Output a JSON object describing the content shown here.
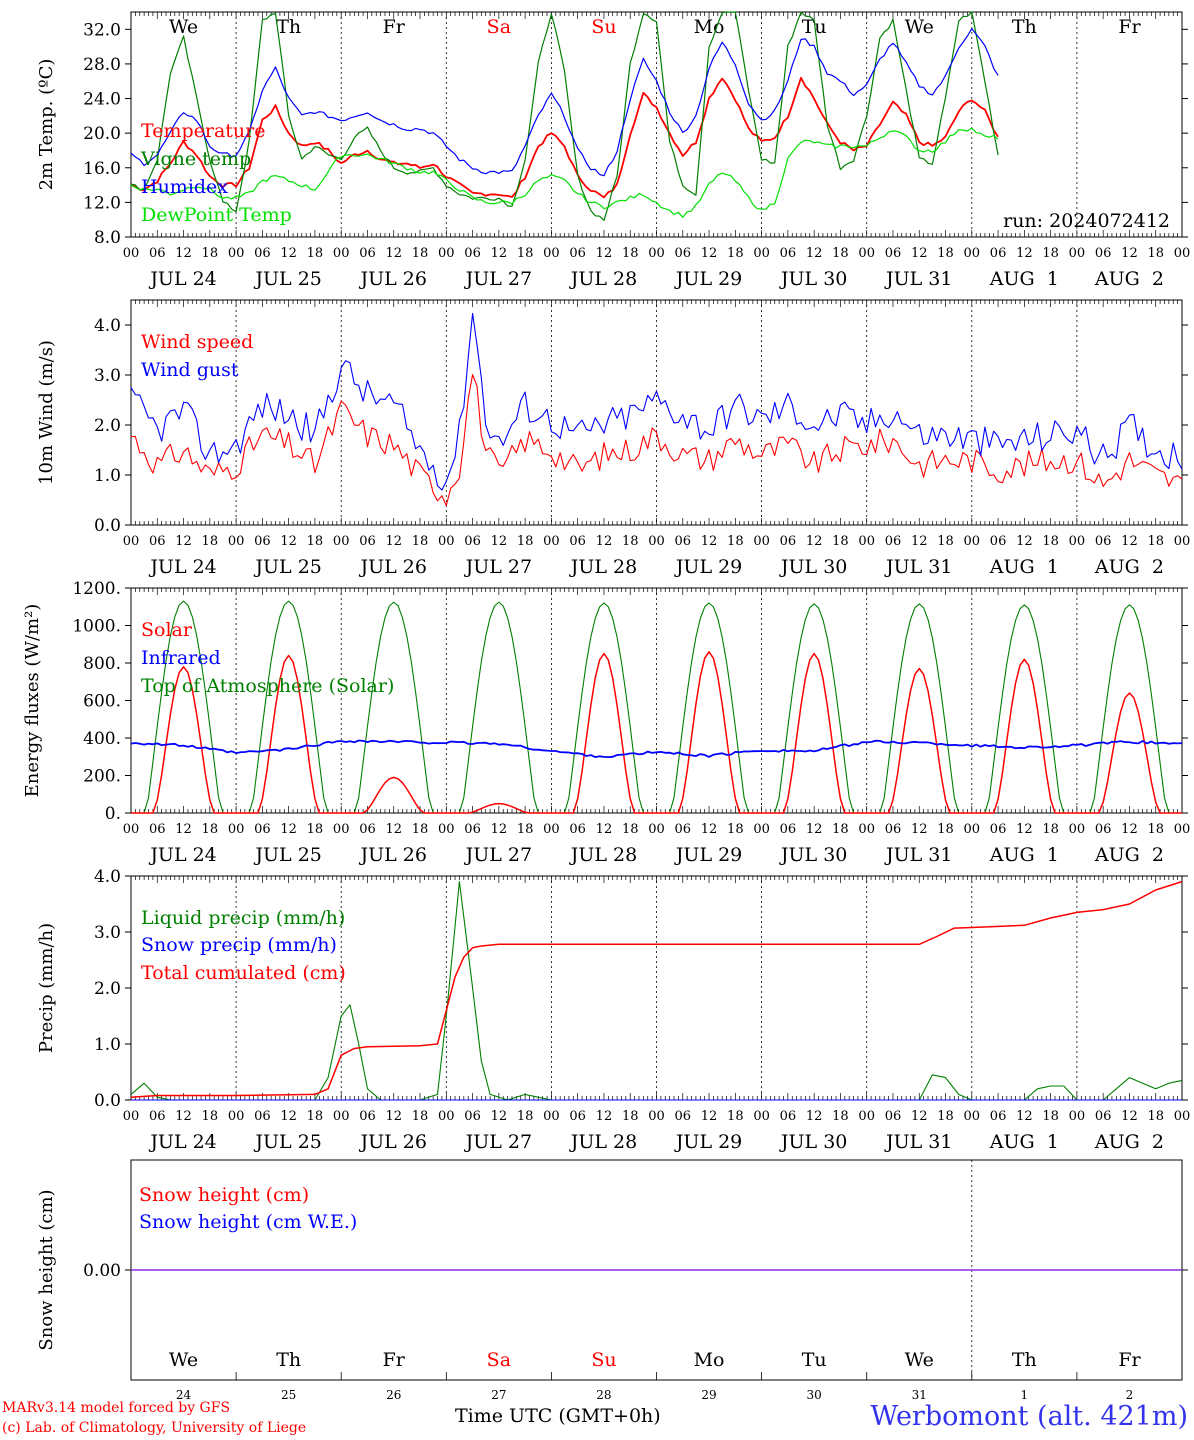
{
  "page": {
    "model_credit": "MARv3.14 model forced by GFS",
    "lab_credit": "(c) Lab. of Climatology, University of Liege",
    "time_axis_label": "Time UTC (GMT+0h)",
    "station": "Werbomont (alt. 421m)"
  },
  "colors": {
    "red": "#ff0000",
    "green": "#008000",
    "blue": "#0000ff",
    "lightgreen": "#00e000",
    "weekend": "#ff0000",
    "purple": "#8a2be2"
  },
  "day_names": [
    "We",
    "Th",
    "Fr",
    "Sa",
    "Su",
    "Mo",
    "Tu",
    "We",
    "Th",
    "Fr"
  ],
  "weekend_days": [
    3,
    4
  ],
  "date_labels": [
    "JUL 24",
    "JUL 25",
    "JUL 26",
    "JUL 27",
    "JUL 28",
    "JUL 29",
    "JUL 30",
    "JUL 31",
    "AUG  1",
    "AUG  2"
  ],
  "day_numbers": [
    "24",
    "25",
    "26",
    "27",
    "28",
    "29",
    "30",
    "31",
    "1",
    "2"
  ],
  "hour_ticks": [
    "00",
    "06",
    "12",
    "18"
  ],
  "final_hour": "00",
  "chart_data": [
    {
      "type": "line",
      "ylabel": "2m Temp. (ºC)",
      "ylim": [
        8,
        34
      ],
      "yticks": [
        "8.0",
        "12.0",
        "16.0",
        "20.0",
        "24.0",
        "28.0",
        "32.0"
      ],
      "ytick_values": [
        8,
        12,
        16,
        20,
        24,
        28,
        32
      ],
      "annotation": "run: 2024072412",
      "x_hours": [
        0,
        3,
        6,
        9,
        12,
        15,
        18,
        21,
        24,
        27,
        30,
        33,
        36,
        39,
        42,
        45,
        48,
        51,
        54,
        57,
        60,
        63,
        66,
        69,
        72,
        75,
        78,
        81,
        84,
        87,
        90,
        93,
        96,
        99,
        102,
        105,
        108,
        111,
        114,
        117,
        120,
        123,
        126,
        129,
        132,
        135,
        138,
        141,
        144,
        147,
        150,
        153,
        156,
        159,
        162,
        165,
        168,
        171,
        174,
        177,
        180,
        183,
        186,
        189,
        192,
        195,
        198,
        201,
        204,
        207,
        210,
        213,
        216,
        219,
        222,
        225,
        228,
        231,
        234,
        237,
        240
      ],
      "series": [
        {
          "name": "Temperature",
          "color": "red",
          "values": [
            14.0,
            13.5,
            14.5,
            16.5,
            19.0,
            17.5,
            15.0,
            14.0,
            14.0,
            16.0,
            21.5,
            23.0,
            20.0,
            18.5,
            19.0,
            18.0,
            16.5,
            17.5,
            18.0,
            17.0,
            16.5,
            16.5,
            16.0,
            16.5,
            15.0,
            14.0,
            13.0,
            13.0,
            13.0,
            12.5,
            15.0,
            18.5,
            20.0,
            18.5,
            15.0,
            13.5,
            12.5,
            14.0,
            20.0,
            24.5,
            23.0,
            20.0,
            17.5,
            19.0,
            24.0,
            26.5,
            24.0,
            20.5,
            19.0,
            19.5,
            22.0,
            26.5,
            24.0,
            21.0,
            19.0,
            18.0,
            18.5,
            21.0,
            23.5,
            22.0,
            19.0,
            18.5,
            19.5,
            22.5,
            24.0,
            22.5,
            19.5
          ]
        },
        {
          "name": "Vigne temp",
          "color": "green",
          "values": [
            14.0,
            13.5,
            17.0,
            27.0,
            31.0,
            24.0,
            17.0,
            12.0,
            11.0,
            19.0,
            33.0,
            34.0,
            22.0,
            17.0,
            18.5,
            17.5,
            17.0,
            19.5,
            20.5,
            18.0,
            16.0,
            15.5,
            15.5,
            16.0,
            14.0,
            13.0,
            12.5,
            12.5,
            12.5,
            11.5,
            17.0,
            28.0,
            34.0,
            27.0,
            15.0,
            11.0,
            10.0,
            15.0,
            28.0,
            34.0,
            33.0,
            19.0,
            14.0,
            13.0,
            30.0,
            34.0,
            34.0,
            25.0,
            17.0,
            16.5,
            30.0,
            34.0,
            33.0,
            21.0,
            16.0,
            17.0,
            22.0,
            31.0,
            33.0,
            25.0,
            17.0,
            16.5,
            24.0,
            33.0,
            34.0,
            26.0,
            17.5
          ]
        },
        {
          "name": "Humidex",
          "color": "blue",
          "values": [
            17.5,
            16.5,
            17.5,
            20.0,
            22.5,
            21.5,
            18.5,
            17.5,
            17.5,
            20.0,
            25.0,
            27.5,
            24.0,
            22.0,
            22.5,
            22.0,
            21.5,
            22.0,
            22.5,
            21.5,
            21.0,
            20.5,
            20.5,
            20.0,
            18.5,
            17.0,
            16.0,
            15.5,
            15.5,
            15.5,
            18.5,
            22.0,
            24.5,
            22.0,
            18.0,
            16.0,
            15.0,
            18.0,
            24.0,
            28.5,
            26.0,
            22.5,
            20.0,
            22.0,
            27.5,
            30.5,
            28.0,
            23.5,
            21.5,
            22.5,
            26.0,
            31.0,
            30.0,
            27.0,
            26.0,
            24.5,
            25.5,
            28.5,
            30.5,
            28.0,
            25.5,
            24.5,
            26.5,
            30.0,
            32.0,
            30.0,
            26.5
          ]
        },
        {
          "name": "DewPoint Temp",
          "color": "lightgreen",
          "values": [
            14.0,
            13.5,
            13.5,
            13.0,
            13.5,
            14.0,
            13.5,
            12.5,
            12.5,
            13.0,
            14.5,
            15.0,
            14.5,
            14.0,
            13.5,
            15.5,
            17.5,
            17.5,
            17.5,
            17.0,
            16.5,
            16.0,
            15.5,
            15.5,
            14.5,
            13.5,
            12.5,
            12.0,
            12.0,
            12.0,
            13.0,
            14.5,
            15.0,
            14.5,
            13.0,
            12.0,
            11.5,
            12.0,
            12.5,
            13.0,
            12.0,
            11.0,
            10.5,
            11.5,
            14.0,
            15.5,
            14.5,
            12.5,
            11.0,
            12.0,
            17.0,
            19.0,
            19.0,
            18.5,
            18.5,
            18.5,
            18.5,
            19.5,
            20.5,
            19.5,
            18.0,
            18.0,
            19.0,
            20.5,
            20.5,
            19.5,
            19.5
          ]
        }
      ]
    },
    {
      "type": "line",
      "ylabel": "10m Wind (m/s)",
      "ylim": [
        0,
        4.5
      ],
      "yticks": [
        "0.0",
        "1.0",
        "2.0",
        "3.0",
        "4.0"
      ],
      "ytick_values": [
        0,
        1,
        2,
        3,
        4
      ],
      "x_hours": [
        0,
        6,
        12,
        18,
        24,
        30,
        36,
        42,
        48,
        54,
        60,
        66,
        72,
        75,
        78,
        81,
        84,
        90,
        96,
        102,
        108,
        114,
        120,
        126,
        132,
        138,
        144,
        150,
        156,
        162,
        168,
        174,
        180,
        186,
        192,
        198,
        204,
        210,
        216,
        222,
        228,
        234,
        240
      ],
      "series": [
        {
          "name": "Wind speed",
          "color": "red",
          "values": [
            1.8,
            1.2,
            1.5,
            1.0,
            1.2,
            1.8,
            1.6,
            1.2,
            2.3,
            1.8,
            1.6,
            1.0,
            0.6,
            1.2,
            3.1,
            1.5,
            1.0,
            1.7,
            1.5,
            1.1,
            1.4,
            1.5,
            1.8,
            1.4,
            1.3,
            1.7,
            1.4,
            1.6,
            1.2,
            1.5,
            1.6,
            1.7,
            1.2,
            1.3,
            1.3,
            1.1,
            1.2,
            1.3,
            1.3,
            0.8,
            1.3,
            1.0,
            0.8
          ]
        },
        {
          "name": "Wind gust",
          "color": "blue",
          "values": [
            2.5,
            1.9,
            2.3,
            1.4,
            1.6,
            2.4,
            2.2,
            1.8,
            3.2,
            2.6,
            2.4,
            1.5,
            0.9,
            1.8,
            4.3,
            2.2,
            1.6,
            2.4,
            2.1,
            1.8,
            2.0,
            2.2,
            2.5,
            2.2,
            1.9,
            2.4,
            2.1,
            2.4,
            2.0,
            2.2,
            2.0,
            2.3,
            1.8,
            1.8,
            1.7,
            1.6,
            1.7,
            1.8,
            1.9,
            1.3,
            2.0,
            1.5,
            1.4
          ]
        }
      ]
    },
    {
      "type": "line",
      "ylabel": "Energy fluxes (W/m²)",
      "ylim": [
        0,
        1200
      ],
      "yticks": [
        "0.",
        "200.",
        "400.",
        "600.",
        "800.",
        "1000.",
        "1200."
      ],
      "ytick_values": [
        0,
        200,
        400,
        600,
        800,
        1000,
        1200
      ],
      "day_peaks_solar": [
        780,
        840,
        190,
        50,
        850,
        860,
        850,
        770,
        820,
        640
      ],
      "day_peaks_toa": [
        1130,
        1130,
        1125,
        1125,
        1120,
        1120,
        1115,
        1115,
        1110,
        1110
      ],
      "series": [
        {
          "name": "Solar",
          "color": "red"
        },
        {
          "name": "Infrared",
          "color": "blue",
          "x_hours": [
            0,
            12,
            24,
            36,
            48,
            60,
            72,
            84,
            96,
            108,
            120,
            132,
            144,
            156,
            168,
            180,
            192,
            204,
            216,
            228,
            240
          ],
          "values": [
            375,
            360,
            320,
            340,
            385,
            380,
            375,
            370,
            330,
            300,
            325,
            305,
            335,
            330,
            380,
            375,
            360,
            350,
            360,
            380,
            370
          ]
        },
        {
          "name": "Top of Atmosphere (Solar)",
          "color": "green"
        }
      ]
    },
    {
      "type": "line",
      "ylabel": "Precip (mm/h)",
      "ylim": [
        0,
        4
      ],
      "yticks": [
        "0.0",
        "1.0",
        "2.0",
        "3.0",
        "4.0"
      ],
      "ytick_values": [
        0,
        1,
        2,
        3,
        4
      ],
      "series": [
        {
          "name": "Liquid precip (mm/h)",
          "color": "green",
          "x_hours": [
            0,
            3,
            6,
            9,
            30,
            42,
            45,
            48,
            50,
            52,
            54,
            57,
            60,
            66,
            70,
            72,
            75,
            78,
            80,
            82,
            86,
            90,
            96,
            180,
            183,
            186,
            189,
            192,
            204,
            207,
            210,
            213,
            216,
            222,
            225,
            228,
            231,
            234,
            237,
            240
          ],
          "values": [
            0.1,
            0.3,
            0.05,
            0,
            0,
            0,
            0.4,
            1.5,
            1.7,
            1.0,
            0.2,
            0,
            0,
            0,
            0.1,
            1.5,
            3.9,
            2.0,
            0.7,
            0.1,
            0,
            0.1,
            0,
            0,
            0.45,
            0.4,
            0.1,
            0,
            0,
            0.2,
            0.25,
            0.25,
            0,
            0,
            0.2,
            0.4,
            0.3,
            0.2,
            0.3,
            0.35
          ]
        },
        {
          "name": "Snow precip (mm/h)",
          "color": "blue",
          "x_hours": [
            0,
            240
          ],
          "values": [
            0,
            0
          ]
        },
        {
          "name": "Total cumulated (cm)",
          "color": "red",
          "x_hours": [
            0,
            6,
            24,
            42,
            45,
            48,
            51,
            54,
            60,
            66,
            70,
            72,
            74,
            76,
            78,
            80,
            84,
            96,
            180,
            184,
            188,
            192,
            204,
            210,
            216,
            222,
            228,
            234,
            240
          ],
          "values": [
            0.05,
            0.08,
            0.08,
            0.1,
            0.2,
            0.8,
            0.92,
            0.95,
            0.96,
            0.97,
            1.0,
            1.6,
            2.2,
            2.55,
            2.72,
            2.75,
            2.78,
            2.78,
            2.78,
            2.92,
            3.07,
            3.08,
            3.12,
            3.25,
            3.35,
            3.4,
            3.5,
            3.75,
            3.9
          ]
        }
      ]
    },
    {
      "type": "line",
      "ylabel": "Snow height (cm)",
      "ylim": [
        -1,
        1
      ],
      "yticks": [
        "0.00"
      ],
      "ytick_values": [
        0
      ],
      "series": [
        {
          "name": "Snow height (cm)",
          "color": "red",
          "x_hours": [
            0,
            240
          ],
          "values": [
            0,
            0
          ]
        },
        {
          "name": "Snow height (cm W.E.)",
          "color": "blue",
          "x_hours": [
            0,
            240
          ],
          "values": [
            0,
            0
          ]
        }
      ]
    }
  ]
}
